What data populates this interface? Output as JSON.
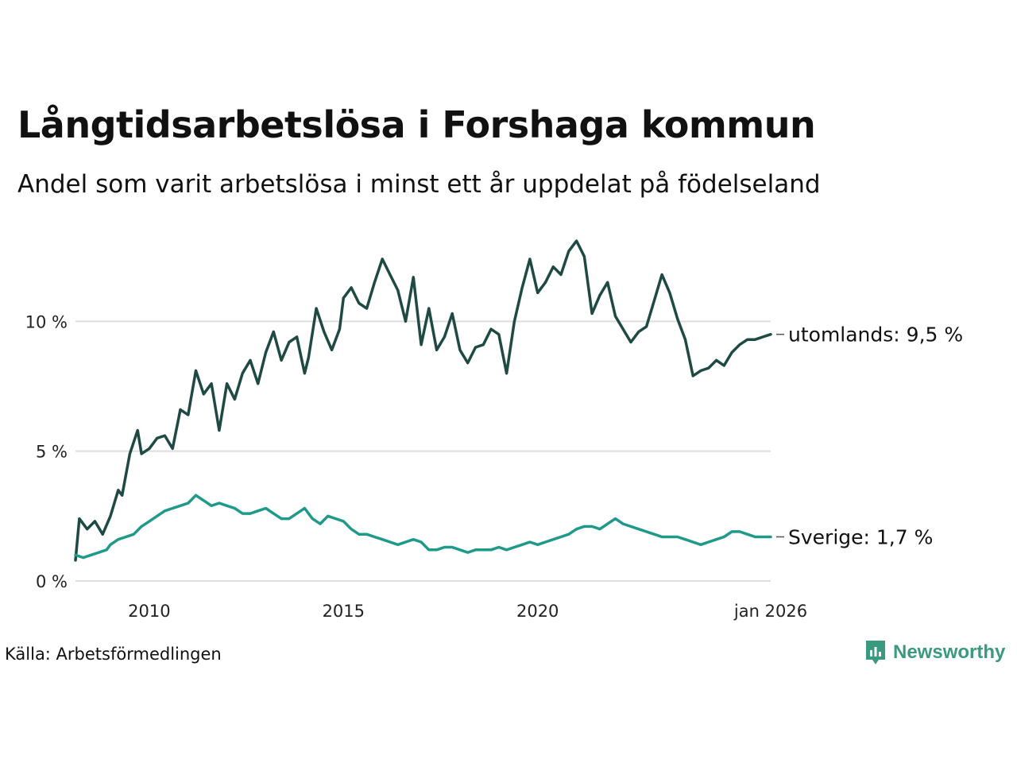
{
  "title": "Långtidsarbetslösa i Forshaga kommun",
  "subtitle": "Andel som varit arbetslösa i minst ett år uppdelat på födelseland",
  "source": "Källa: Arbetsförmedlingen",
  "brand": "Newsworthy",
  "colors": {
    "utomlands": "#1f4a44",
    "sverige": "#1f9a8a",
    "grid": "#dddddd",
    "brand": "#3a9a80"
  },
  "chart_data": {
    "type": "line",
    "title": "Långtidsarbetslösa i Forshaga kommun",
    "xlabel": "",
    "ylabel": "",
    "xlim": [
      2008.1,
      2026.0
    ],
    "ylim": [
      0,
      13.5
    ],
    "y_ticks": [
      0,
      5,
      10
    ],
    "y_tick_labels": [
      "0 %",
      "5 %",
      "10 %"
    ],
    "x_ticks": [
      2010,
      2015,
      2020,
      2026.0
    ],
    "x_tick_labels": [
      "2010",
      "2015",
      "2020",
      "jan 2026"
    ],
    "end_labels": {
      "utomlands": "utomlands: 9,5 %",
      "sverige": "Sverige: 1,7 %"
    },
    "series": [
      {
        "name": "utomlands",
        "x": [
          2008.1,
          2008.2,
          2008.4,
          2008.6,
          2008.8,
          2009.0,
          2009.2,
          2009.3,
          2009.5,
          2009.7,
          2009.8,
          2010.0,
          2010.2,
          2010.4,
          2010.6,
          2010.8,
          2011.0,
          2011.2,
          2011.4,
          2011.6,
          2011.8,
          2012.0,
          2012.2,
          2012.4,
          2012.6,
          2012.8,
          2013.0,
          2013.2,
          2013.4,
          2013.6,
          2013.8,
          2014.0,
          2014.1,
          2014.3,
          2014.5,
          2014.7,
          2014.9,
          2015.0,
          2015.2,
          2015.4,
          2015.6,
          2015.8,
          2016.0,
          2016.2,
          2016.4,
          2016.6,
          2016.8,
          2017.0,
          2017.2,
          2017.4,
          2017.6,
          2017.8,
          2018.0,
          2018.2,
          2018.4,
          2018.6,
          2018.8,
          2019.0,
          2019.2,
          2019.4,
          2019.6,
          2019.8,
          2020.0,
          2020.2,
          2020.4,
          2020.6,
          2020.8,
          2021.0,
          2021.2,
          2021.4,
          2021.6,
          2021.8,
          2022.0,
          2022.2,
          2022.4,
          2022.6,
          2022.8,
          2023.0,
          2023.2,
          2023.4,
          2023.6,
          2023.8,
          2024.0,
          2024.2,
          2024.4,
          2024.6,
          2024.8,
          2025.0,
          2025.2,
          2025.4,
          2025.6,
          2025.8,
          2026.0
        ],
        "values": [
          0.8,
          2.4,
          2.0,
          2.3,
          1.8,
          2.5,
          3.5,
          3.3,
          4.9,
          5.8,
          4.9,
          5.1,
          5.5,
          5.6,
          5.1,
          6.6,
          6.4,
          8.1,
          7.2,
          7.6,
          5.8,
          7.6,
          7.0,
          8.0,
          8.5,
          7.6,
          8.8,
          9.6,
          8.5,
          9.2,
          9.4,
          8.0,
          8.6,
          10.5,
          9.6,
          8.9,
          9.7,
          10.9,
          11.3,
          10.7,
          10.5,
          11.5,
          12.4,
          11.8,
          11.2,
          10.0,
          11.7,
          9.1,
          10.5,
          8.9,
          9.4,
          10.3,
          8.9,
          8.4,
          9.0,
          9.1,
          9.7,
          9.5,
          8.0,
          10.0,
          11.3,
          12.4,
          11.1,
          11.5,
          12.1,
          11.8,
          12.7,
          13.1,
          12.5,
          10.3,
          11.0,
          11.5,
          10.2,
          9.7,
          9.2,
          9.6,
          9.8,
          10.8,
          11.8,
          11.1,
          10.1,
          9.3,
          7.9,
          8.1,
          8.2,
          8.5,
          8.3,
          8.8,
          9.1,
          9.3,
          9.3,
          9.4,
          9.5
        ]
      },
      {
        "name": "Sverige",
        "x": [
          2008.1,
          2008.3,
          2008.5,
          2008.7,
          2008.9,
          2009.0,
          2009.2,
          2009.4,
          2009.6,
          2009.8,
          2010.0,
          2010.2,
          2010.4,
          2010.6,
          2010.8,
          2011.0,
          2011.2,
          2011.4,
          2011.6,
          2011.8,
          2012.0,
          2012.2,
          2012.4,
          2012.6,
          2012.8,
          2013.0,
          2013.2,
          2013.4,
          2013.6,
          2013.8,
          2014.0,
          2014.2,
          2014.4,
          2014.6,
          2014.8,
          2015.0,
          2015.2,
          2015.4,
          2015.6,
          2015.8,
          2016.0,
          2016.2,
          2016.4,
          2016.6,
          2016.8,
          2017.0,
          2017.2,
          2017.4,
          2017.6,
          2017.8,
          2018.0,
          2018.2,
          2018.4,
          2018.6,
          2018.8,
          2019.0,
          2019.2,
          2019.4,
          2019.6,
          2019.8,
          2020.0,
          2020.2,
          2020.4,
          2020.6,
          2020.8,
          2021.0,
          2021.2,
          2021.4,
          2021.6,
          2021.8,
          2022.0,
          2022.2,
          2022.4,
          2022.6,
          2022.8,
          2023.0,
          2023.2,
          2023.4,
          2023.6,
          2023.8,
          2024.0,
          2024.2,
          2024.4,
          2024.6,
          2024.8,
          2025.0,
          2025.2,
          2025.4,
          2025.6,
          2025.8,
          2026.0
        ],
        "values": [
          1.0,
          0.9,
          1.0,
          1.1,
          1.2,
          1.4,
          1.6,
          1.7,
          1.8,
          2.1,
          2.3,
          2.5,
          2.7,
          2.8,
          2.9,
          3.0,
          3.3,
          3.1,
          2.9,
          3.0,
          2.9,
          2.8,
          2.6,
          2.6,
          2.7,
          2.8,
          2.6,
          2.4,
          2.4,
          2.6,
          2.8,
          2.4,
          2.2,
          2.5,
          2.4,
          2.3,
          2.0,
          1.8,
          1.8,
          1.7,
          1.6,
          1.5,
          1.4,
          1.5,
          1.6,
          1.5,
          1.2,
          1.2,
          1.3,
          1.3,
          1.2,
          1.1,
          1.2,
          1.2,
          1.2,
          1.3,
          1.2,
          1.3,
          1.4,
          1.5,
          1.4,
          1.5,
          1.6,
          1.7,
          1.8,
          2.0,
          2.1,
          2.1,
          2.0,
          2.2,
          2.4,
          2.2,
          2.1,
          2.0,
          1.9,
          1.8,
          1.7,
          1.7,
          1.7,
          1.6,
          1.5,
          1.4,
          1.5,
          1.6,
          1.7,
          1.9,
          1.9,
          1.8,
          1.7,
          1.7,
          1.7
        ]
      }
    ]
  }
}
